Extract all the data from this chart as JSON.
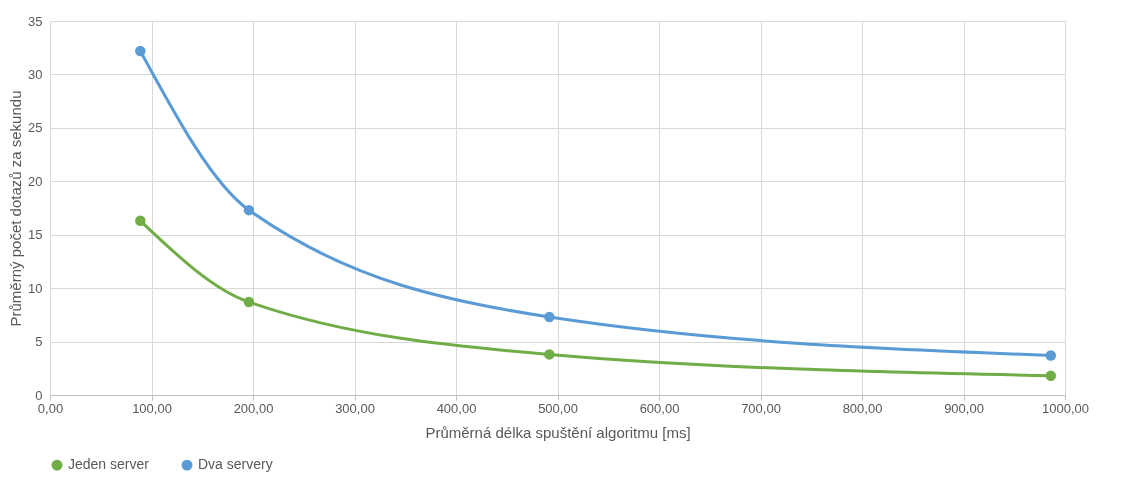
{
  "chart_data": {
    "type": "line",
    "xlabel": "Průměrná délka spuštění algoritmu [ms]",
    "ylabel": "Průměrný počet dotazů za sekundu",
    "x": [
      89,
      196,
      492,
      986
    ],
    "series": [
      {
        "name": "Jeden server",
        "color": "#70ad47",
        "values": [
          16.3,
          8.7,
          3.8,
          1.8
        ]
      },
      {
        "name": "Dva servery",
        "color": "#5b9bd5",
        "values": [
          32.2,
          17.3,
          7.3,
          3.7
        ]
      }
    ],
    "xlim": [
      0,
      1000
    ],
    "xticks": [
      {
        "value": 0,
        "label": "0,00"
      },
      {
        "value": 100,
        "label": "100,00"
      },
      {
        "value": 200,
        "label": "200,00"
      },
      {
        "value": 300,
        "label": "300,00"
      },
      {
        "value": 400,
        "label": "400,00"
      },
      {
        "value": 500,
        "label": "500,00"
      },
      {
        "value": 600,
        "label": "600,00"
      },
      {
        "value": 700,
        "label": "700,00"
      },
      {
        "value": 800,
        "label": "800,00"
      },
      {
        "value": 900,
        "label": "900,00"
      },
      {
        "value": 1000,
        "label": "1000,00"
      }
    ],
    "ylim": [
      0,
      35
    ],
    "yticks": [
      0,
      5,
      10,
      15,
      20,
      25,
      30,
      35
    ],
    "grid": true,
    "legend": "bottom",
    "marker": "circle",
    "line_style": "solid"
  }
}
